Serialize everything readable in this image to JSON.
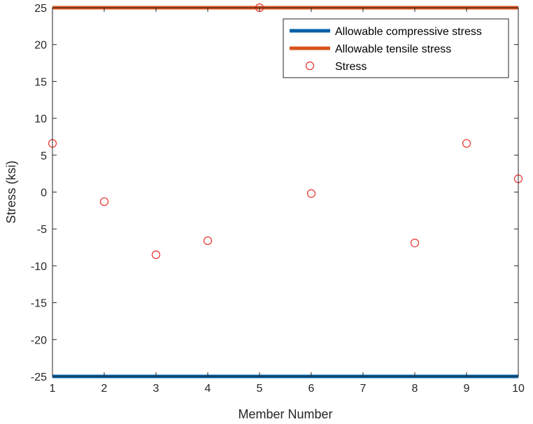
{
  "chart_data": {
    "type": "scatter",
    "xlabel": "Member Number",
    "ylabel": "Stress (ksi)",
    "xlim": [
      1,
      10
    ],
    "ylim": [
      -25,
      25
    ],
    "xticks": [
      1,
      2,
      3,
      4,
      5,
      6,
      7,
      8,
      9,
      10
    ],
    "yticks": [
      -25,
      -20,
      -15,
      -10,
      -5,
      0,
      5,
      10,
      15,
      20,
      25
    ],
    "grid": false,
    "legend_position": "top-right",
    "lines": [
      {
        "name": "Allowable compressive stress",
        "y": -25,
        "color": "#0060A8"
      },
      {
        "name": "Allowable tensile stress",
        "y": 25,
        "color": "#D95319"
      }
    ],
    "series": [
      {
        "name": "Stress",
        "marker": "circle",
        "color": "#E8302A",
        "points": [
          [
            1,
            6.6
          ],
          [
            2,
            -1.3
          ],
          [
            3,
            -8.5
          ],
          [
            4,
            -6.6
          ],
          [
            5,
            25
          ],
          [
            6,
            -0.2
          ],
          [
            8,
            -6.9
          ],
          [
            9,
            6.6
          ],
          [
            10,
            1.8
          ]
        ]
      }
    ]
  }
}
